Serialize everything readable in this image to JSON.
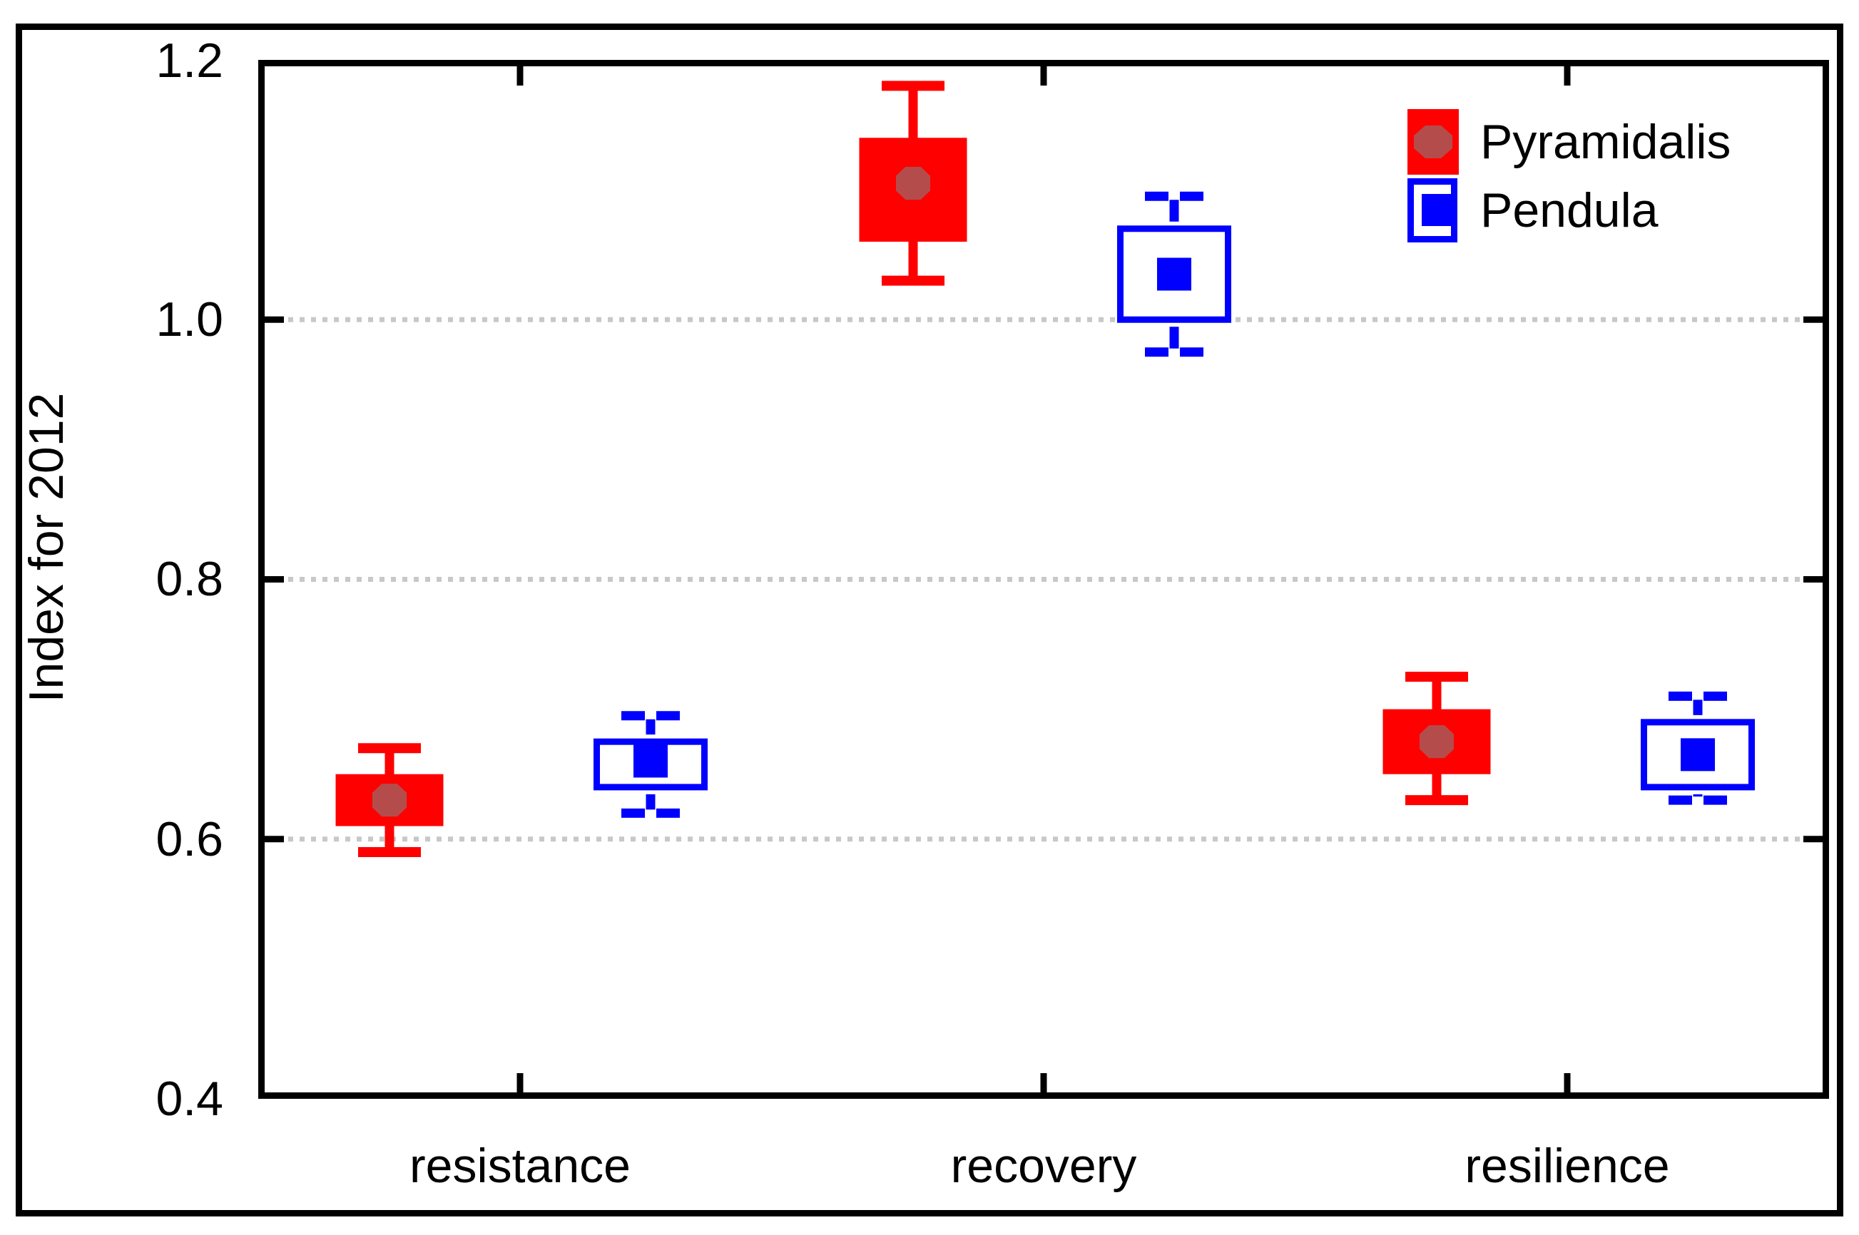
{
  "figure": {
    "y_axis_title": "Index for 2012",
    "y_tick_labels": [
      "1.2",
      "1.0",
      "0.8",
      "0.6",
      "0.4"
    ],
    "x_tick_labels": [
      "resistance",
      "recovery",
      "resilience"
    ]
  },
  "legend": {
    "position": "top-right-inside",
    "items": [
      {
        "label": "Pyramidalis",
        "swatch": "red-filled-box-with-dark-red-octagon"
      },
      {
        "label": "Pendula",
        "swatch": "blue-open-box-with-blue-square"
      }
    ]
  },
  "colors": {
    "pyramidalis_box": "#ff0000",
    "pyramidalis_marker": "#b54c4c",
    "pendula_box": "#0000ff",
    "pendula_marker": "#0000ff",
    "gridline": "#c8c8c8",
    "axis": "#000000",
    "text": "#000000",
    "background": "#ffffff"
  },
  "chart_data": {
    "type": "boxplot",
    "title": "",
    "xlabel": "",
    "ylabel": "Index for 2012",
    "categories": [
      "resistance",
      "recovery",
      "resilience"
    ],
    "ylim": [
      0.4,
      1.2
    ],
    "yticks": [
      1.2,
      1.0,
      0.8,
      0.6,
      0.4
    ],
    "gridlines_at": [
      1.0,
      0.8,
      0.6
    ],
    "grid_style": "dotted",
    "legend_position": "top-right",
    "series": [
      {
        "name": "Pyramidalis",
        "style": "filled",
        "color": "#ff0000",
        "marker": "octagon",
        "marker_color": "#b54c4c",
        "points": [
          {
            "category": "resistance",
            "mean": 0.63,
            "box_low": 0.61,
            "box_high": 0.65,
            "whisker_low": 0.59,
            "whisker_high": 0.67
          },
          {
            "category": "recovery",
            "mean": 1.105,
            "box_low": 1.06,
            "box_high": 1.14,
            "whisker_low": 1.03,
            "whisker_high": 1.18
          },
          {
            "category": "resilience",
            "mean": 0.675,
            "box_low": 0.65,
            "box_high": 0.7,
            "whisker_low": 0.63,
            "whisker_high": 0.725
          }
        ]
      },
      {
        "name": "Pendula",
        "style": "open",
        "color": "#0000ff",
        "marker": "square",
        "marker_color": "#0000ff",
        "points": [
          {
            "category": "resistance",
            "mean": 0.66,
            "box_low": 0.64,
            "box_high": 0.675,
            "whisker_low": 0.62,
            "whisker_high": 0.695
          },
          {
            "category": "recovery",
            "mean": 1.035,
            "box_low": 1.0,
            "box_high": 1.07,
            "whisker_low": 0.975,
            "whisker_high": 1.095
          },
          {
            "category": "resilience",
            "mean": 0.665,
            "box_low": 0.64,
            "box_high": 0.69,
            "whisker_low": 0.63,
            "whisker_high": 0.71
          }
        ]
      }
    ]
  }
}
